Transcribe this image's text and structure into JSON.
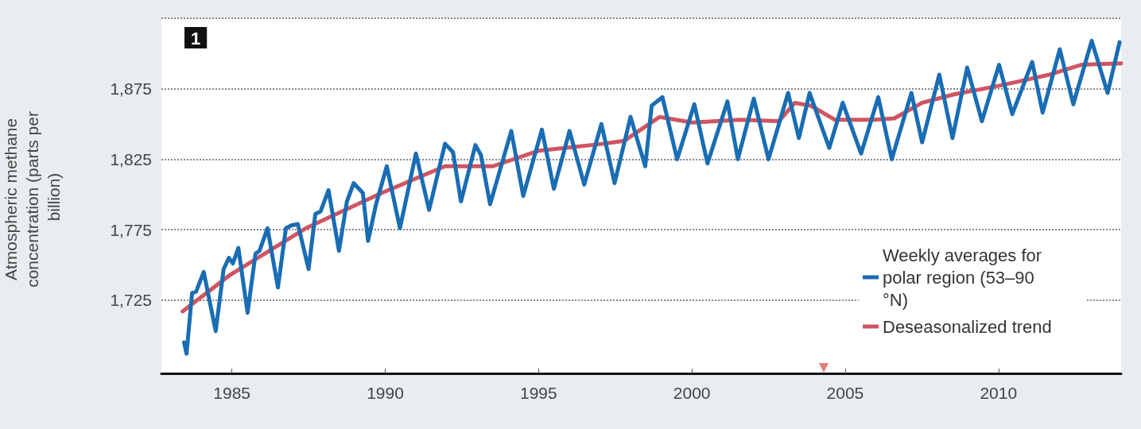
{
  "chart_data": {
    "type": "line",
    "ylabel": "Atmospheric methane concentration (parts per billion)",
    "annotations": [
      "1"
    ],
    "x": [
      1983.44,
      1983.52,
      1983.7,
      1983.83,
      1984.08,
      1984.47,
      1984.73,
      1984.9,
      1985.03,
      1985.21,
      1985.51,
      1985.77,
      1985.9,
      1986.16,
      1986.5,
      1986.76,
      1986.94,
      1987.15,
      1987.5,
      1987.72,
      1987.89,
      1988.15,
      1988.49,
      1988.75,
      1988.97,
      1989.27,
      1989.44,
      1989.7,
      1990.05,
      1990.48,
      1991.0,
      1991.43,
      1991.95,
      1992.21,
      1992.47,
      1992.94,
      1993.12,
      1993.42,
      1994.11,
      1994.5,
      1995.11,
      1995.5,
      1996.01,
      1996.49,
      1997.05,
      1997.48,
      1998.0,
      1998.48,
      1998.69,
      1999.04,
      1999.52,
      2000.08,
      2000.51,
      2001.16,
      2001.5,
      2002.02,
      2002.5,
      2003.14,
      2003.49,
      2003.84,
      2004.48,
      2004.92,
      2005.52,
      2006.08,
      2006.52,
      2007.16,
      2007.51,
      2008.07,
      2008.5,
      2008.98,
      2009.46,
      2010.02,
      2010.45,
      2011.1,
      2011.44,
      2012.0,
      2012.44,
      2013.04,
      2013.56,
      2013.95
    ],
    "series": [
      {
        "name": "Weekly averages for polar region (53–90 °N)",
        "color": "#1a6db3",
        "values": [
          1695,
          1687,
          1730,
          1731,
          1745,
          1703,
          1747,
          1755,
          1751,
          1762,
          1716,
          1758,
          1760,
          1776,
          1734,
          1776,
          1778,
          1779,
          1747,
          1786,
          1788,
          1803,
          1760,
          1795,
          1808,
          1801,
          1767,
          1793,
          1820,
          1776,
          1829,
          1789,
          1836,
          1830,
          1795,
          1835,
          1828,
          1793,
          1845,
          1799,
          1846,
          1804,
          1845,
          1807,
          1850,
          1808,
          1855,
          1820,
          1863,
          1869,
          1825,
          1864,
          1822,
          1866,
          1825,
          1868,
          1825,
          1872,
          1840,
          1872,
          1833,
          1865,
          1829,
          1869,
          1825,
          1872,
          1837,
          1885,
          1840,
          1890,
          1852,
          1892,
          1857,
          1894,
          1858,
          1903,
          1864,
          1909,
          1872,
          1908
        ]
      },
      {
        "name": "Deseasonalized trend",
        "color": "#cf5560",
        "x": [
          1983.39,
          1984.95,
          1987.41,
          1989.88,
          1991.95,
          1993.51,
          1995.01,
          1997.14,
          1997.79,
          1998.95,
          2000.02,
          2001.55,
          2002.84,
          2003.36,
          2003.88,
          2004.66,
          2005.95,
          2006.6,
          2007.51,
          2008.55,
          2010.0,
          2011.66,
          2012.7,
          2014.0
        ],
        "values": [
          1717,
          1743,
          1776,
          1801,
          1820,
          1820,
          1831,
          1836,
          1838,
          1855,
          1851,
          1853,
          1852,
          1865,
          1863,
          1853,
          1853,
          1854,
          1865,
          1871,
          1877,
          1885,
          1892,
          1893
        ]
      },
      {
        "type": "scatter",
        "marker": "triangle",
        "color": "#e05a5a",
        "x": [
          2004.3
        ],
        "values": [
          1677
        ]
      }
    ],
    "xlim": [
      1982.7,
      2014.0
    ],
    "xticks": [
      1985,
      1990,
      1995,
      2000,
      2005,
      2010
    ],
    "ylim": [
      1673,
      1925
    ],
    "yticks": [
      {
        "value": 1725,
        "label": "1,725"
      },
      {
        "value": 1775,
        "label": "1,775"
      },
      {
        "value": 1825,
        "label": "1,825"
      },
      {
        "value": 1875,
        "label": "1,875"
      },
      {
        "value": 1925,
        "label": null
      }
    ],
    "grid": "y",
    "legend": "bottom right",
    "marker": "none",
    "line_style": "solid"
  }
}
